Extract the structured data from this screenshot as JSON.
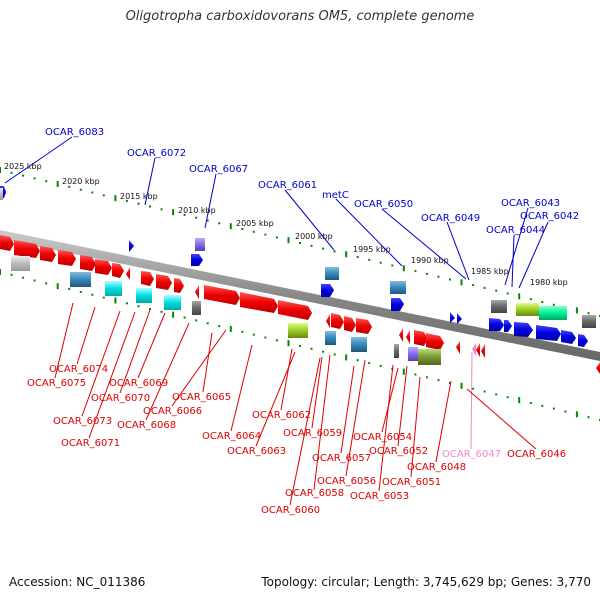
{
  "title": "Oligotropha carboxidovorans OM5, complete genome",
  "footer": {
    "accession": "Accession: NC_011386",
    "topology": "Topology: circular; Length: 3,745,629 bp; Genes: 3,770"
  },
  "colors": {
    "plus_strand": "#0000dd",
    "minus_strand": "#ee0000",
    "pseudo": "#ee88cc",
    "backbone": "#888888",
    "tick": "#008800"
  },
  "ticks": [
    "2025 kbp",
    "2020 kbp",
    "2015 kbp",
    "2010 kbp",
    "2005 kbp",
    "2000 kbp",
    "1995 kbp",
    "1990 kbp",
    "1985 kbp",
    "1980 kbp"
  ],
  "top_labels": [
    "OCAR_6083",
    "OCAR_6072",
    "OCAR_6067",
    "OCAR_6061",
    "metC",
    "OCAR_6050",
    "OCAR_6049",
    "OCAR_6043",
    "OCAR_6042",
    "OCAR_6044"
  ],
  "bottom_labels": [
    "OCAR_6074",
    "OCAR_6075",
    "OCAR_6069",
    "OCAR_6070",
    "OCAR_6073",
    "OCAR_6068",
    "OCAR_6066",
    "OCAR_6065",
    "OCAR_6071",
    "OCAR_6064",
    "OCAR_6062",
    "OCAR_6063",
    "OCAR_6059",
    "OCAR_6054",
    "OCAR_6057",
    "OCAR_6052",
    "OCAR_6056",
    "OCAR_6051",
    "OCAR_6048",
    "OCAR_6047",
    "OCAR_6046",
    "OCAR_6053",
    "OCAR_6058",
    "OCAR_6060"
  ]
}
